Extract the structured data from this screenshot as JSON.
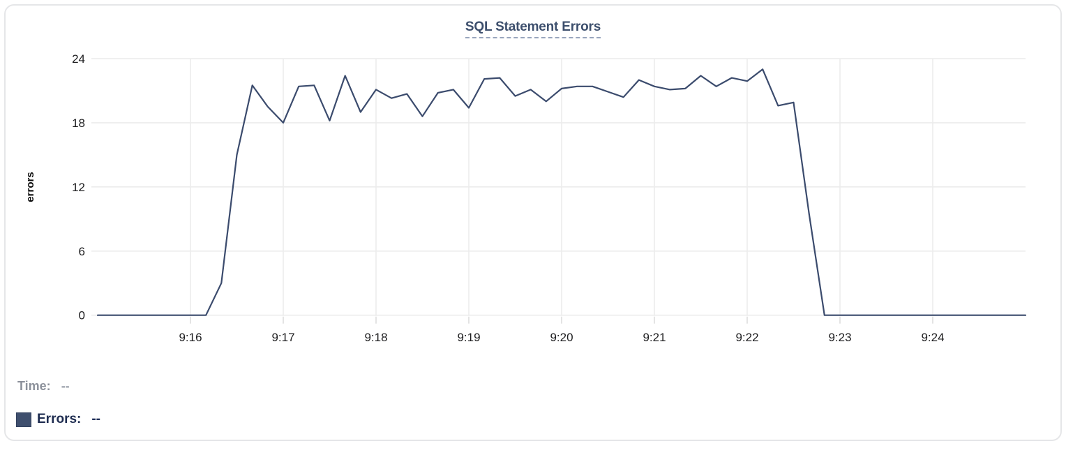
{
  "card": {
    "title": "SQL Statement Errors"
  },
  "chart_data": {
    "type": "line",
    "title": "SQL Statement Errors",
    "xlabel": "",
    "ylabel": "errors",
    "x_range": [
      "9:15:00",
      "9:25:00"
    ],
    "ylim": [
      0,
      24
    ],
    "y_ticks": [
      0,
      6,
      12,
      18,
      24
    ],
    "x_tick_labels": [
      "9:16",
      "9:17",
      "9:18",
      "9:19",
      "9:20",
      "9:21",
      "9:22",
      "9:23",
      "9:24"
    ],
    "grid": true,
    "legend_position": "bottom-left",
    "series": [
      {
        "name": "Errors",
        "color": "#3b4b6d",
        "times": [
          "9:15:00",
          "9:15:10",
          "9:15:20",
          "9:15:30",
          "9:15:40",
          "9:15:50",
          "9:16:00",
          "9:16:10",
          "9:16:20",
          "9:16:30",
          "9:16:40",
          "9:16:50",
          "9:17:00",
          "9:17:10",
          "9:17:20",
          "9:17:30",
          "9:17:40",
          "9:17:50",
          "9:18:00",
          "9:18:10",
          "9:18:20",
          "9:18:30",
          "9:18:40",
          "9:18:50",
          "9:19:00",
          "9:19:10",
          "9:19:20",
          "9:19:30",
          "9:19:40",
          "9:19:50",
          "9:20:00",
          "9:20:10",
          "9:20:20",
          "9:20:30",
          "9:20:40",
          "9:20:50",
          "9:21:00",
          "9:21:10",
          "9:21:20",
          "9:21:30",
          "9:21:40",
          "9:21:50",
          "9:22:00",
          "9:22:10",
          "9:22:20",
          "9:22:30",
          "9:22:40",
          "9:22:50",
          "9:23:00",
          "9:23:10",
          "9:23:20",
          "9:23:30",
          "9:23:40",
          "9:23:50",
          "9:24:00",
          "9:24:10",
          "9:24:20",
          "9:24:30",
          "9:24:40",
          "9:24:50",
          "9:25:00"
        ],
        "values": [
          0,
          0,
          0,
          0,
          0,
          0,
          0,
          0,
          3,
          15,
          21.5,
          19.5,
          18,
          21.4,
          21.5,
          18.2,
          22.4,
          19,
          21.1,
          20.3,
          20.7,
          18.6,
          20.8,
          21.1,
          19.4,
          22.1,
          22.2,
          20.5,
          21.1,
          20,
          21.2,
          21.4,
          21.4,
          20.9,
          20.4,
          22,
          21.4,
          21.1,
          21.2,
          22.4,
          21.4,
          22.2,
          21.9,
          23,
          19.6,
          19.9,
          9.5,
          0,
          0,
          0,
          0,
          0,
          0,
          0,
          0,
          0,
          0,
          0,
          0,
          0,
          0
        ]
      }
    ]
  },
  "tooltip": {
    "time_label": "Time:",
    "time_value": "--",
    "errors_label": "Errors:",
    "errors_value": "--",
    "swatch_color": "#3f4f6e"
  },
  "colors": {
    "line": "#3b4b6d",
    "title": "#3d4f6d",
    "grid": "#ececec",
    "tick_mark": "#dedede",
    "card_border": "#e5e6e8",
    "time_label": "#8c919b",
    "errors_label": "#1e2c50"
  }
}
